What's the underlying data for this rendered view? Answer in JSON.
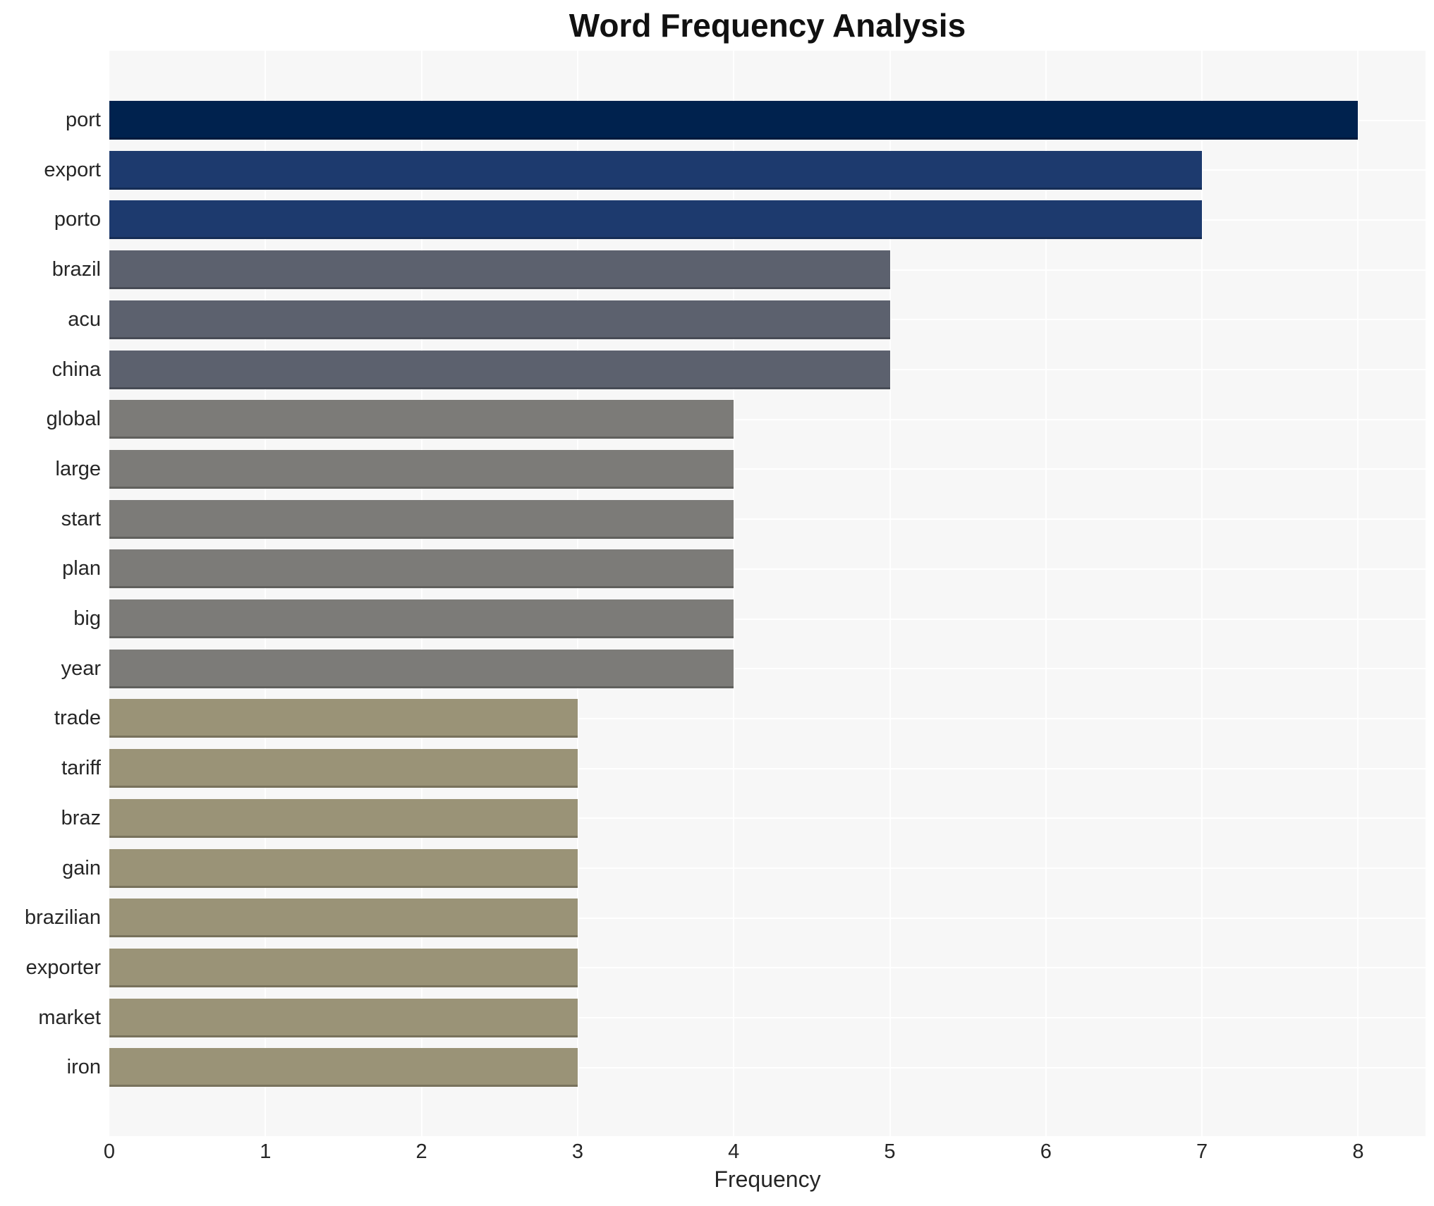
{
  "title": "Word Frequency Analysis",
  "x_axis": {
    "label": "Frequency",
    "tick_labels": [
      "0",
      "1",
      "2",
      "3",
      "4",
      "5",
      "6",
      "7",
      "8"
    ]
  },
  "colors": {
    "figure_background": "#ffffff",
    "plot_background": "#f7f7f7",
    "gridline": "#ffffff",
    "text": "#262626",
    "title_text": "#111111",
    "freq_8_bar": "#00224e",
    "freq_7_bar": "#1d3a6e",
    "freq_5_bar": "#5c616e",
    "freq_4_bar": "#7c7b78",
    "freq_3_bar": "#9a9377"
  },
  "chart_data": {
    "type": "bar",
    "orientation": "horizontal",
    "title": "Word Frequency Analysis",
    "xlabel": "Frequency",
    "ylabel": "",
    "categories": [
      "port",
      "export",
      "porto",
      "brazil",
      "acu",
      "china",
      "global",
      "large",
      "start",
      "plan",
      "big",
      "year",
      "trade",
      "tariff",
      "braz",
      "gain",
      "brazilian",
      "exporter",
      "market",
      "iron"
    ],
    "values": [
      8,
      7,
      7,
      5,
      5,
      5,
      4,
      4,
      4,
      4,
      4,
      4,
      3,
      3,
      3,
      3,
      3,
      3,
      3,
      3
    ],
    "bar_colors": [
      "#00224e",
      "#1d3a6e",
      "#1d3a6e",
      "#5c616e",
      "#5c616e",
      "#5c616e",
      "#7c7b78",
      "#7c7b78",
      "#7c7b78",
      "#7c7b78",
      "#7c7b78",
      "#7c7b78",
      "#9a9377",
      "#9a9377",
      "#9a9377",
      "#9a9377",
      "#9a9377",
      "#9a9377",
      "#9a9377",
      "#9a9377"
    ],
    "xlim": [
      0,
      8.43
    ],
    "xticks": [
      0,
      1,
      2,
      3,
      4,
      5,
      6,
      7,
      8
    ],
    "grid": true,
    "legend": "none"
  }
}
